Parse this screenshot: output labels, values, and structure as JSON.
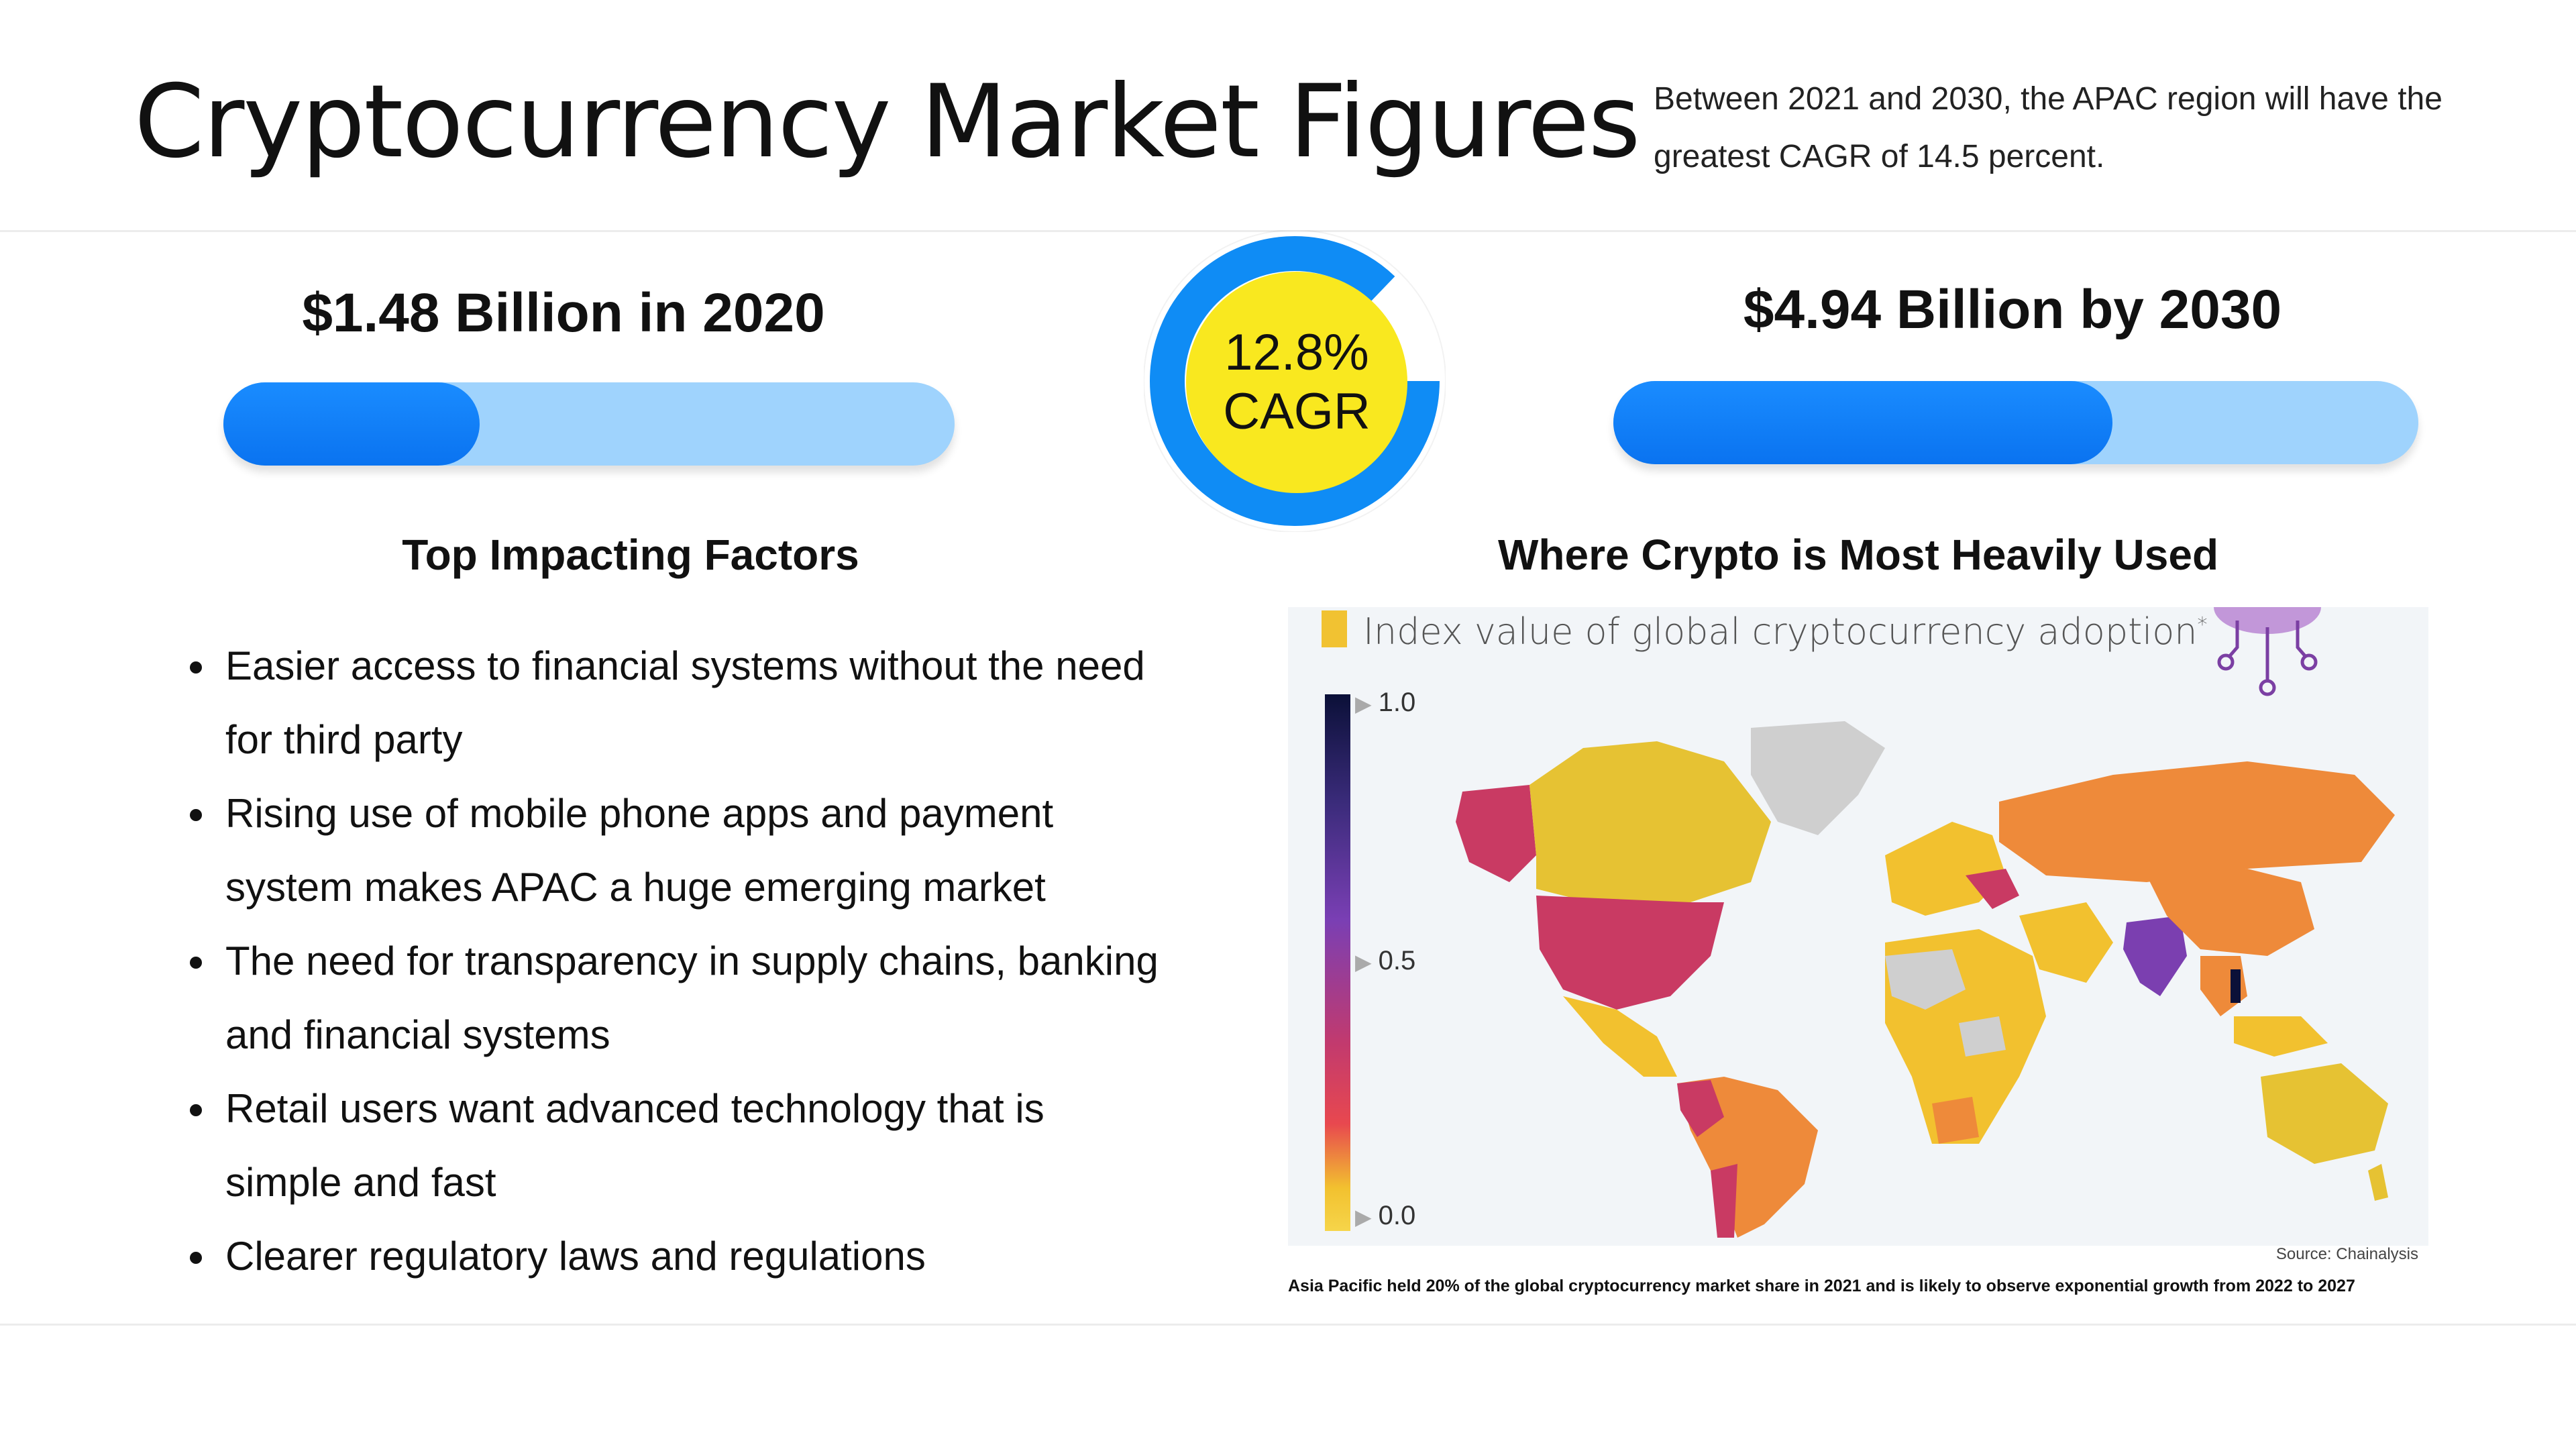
{
  "header": {
    "title": "Cryptocurrency Market Figures",
    "subtitle": "Between 2021 and 2030, the APAC region will have the greatest CAGR of 14.5 percent."
  },
  "stats": {
    "left": {
      "label": "$1.48 Billion in 2020",
      "fill_fraction": 0.35
    },
    "right": {
      "label": "$4.94 Billion by 2030",
      "fill_fraction": 0.62
    },
    "cagr": {
      "value": "12.8%",
      "label": "CAGR"
    }
  },
  "factors": {
    "heading": "Top Impacting Factors",
    "items": [
      "Easier access to financial systems without the need for third party",
      "Rising use of mobile phone apps and payment system makes APAC a huge emerging market",
      "The need for transparency in supply chains, banking and financial systems",
      "Retail users want advanced technology that is simple and fast",
      "Clearer regulatory laws and regulations"
    ]
  },
  "map": {
    "heading": "Where Crypto is Most Heavily Used",
    "title": "Index value of global cryptocurrency adoption",
    "title_note": "*",
    "legend_ticks": [
      "1.0",
      "0.5",
      "0.0"
    ],
    "source": "Source: Chainalysis",
    "caption": "Asia Pacific held 20% of the global cryptocurrency market share in 2021 and is likely to observe exponential growth from 2022 to 2027"
  },
  "colors": {
    "bar_fill": "#0a73f0",
    "bar_track": "#9fd3fd",
    "ring": "#0f8cf5",
    "cagr_badge": "#f9e81f"
  }
}
